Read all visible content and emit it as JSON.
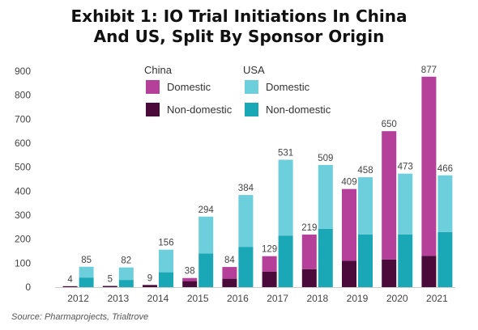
{
  "title_line1": "Exhibit 1: IO Trial Initiations In China",
  "title_line2": "And US, Split By Sponsor Origin",
  "source": "Source: Pharmaprojects, Trialtrove",
  "colors": {
    "china_domestic": "#b5409a",
    "china_non_domestic": "#4a0b3b",
    "usa_domestic": "#6dcfdc",
    "usa_non_domestic": "#1aa8b6"
  },
  "chart_data": {
    "type": "bar",
    "stacked": true,
    "ylim": [
      0,
      900
    ],
    "yticks": [
      0,
      100,
      200,
      300,
      400,
      500,
      600,
      700,
      800,
      900
    ],
    "categories": [
      "2012",
      "2013",
      "2014",
      "2015",
      "2016",
      "2017",
      "2018",
      "2019",
      "2020",
      "2021"
    ],
    "legend": {
      "groups": [
        {
          "name": "China",
          "entries": [
            "Domestic",
            "Non-domestic"
          ]
        },
        {
          "name": "USA",
          "entries": [
            "Domestic",
            "Non-domestic"
          ]
        }
      ]
    },
    "china": {
      "totals": [
        4,
        5,
        9,
        38,
        84,
        129,
        219,
        409,
        650,
        877
      ],
      "non_domestic": [
        4,
        5,
        9,
        25,
        35,
        65,
        75,
        110,
        115,
        130
      ]
    },
    "usa": {
      "totals": [
        85,
        82,
        156,
        294,
        384,
        531,
        509,
        458,
        473,
        466
      ],
      "non_domestic": [
        40,
        30,
        62,
        140,
        168,
        215,
        243,
        220,
        220,
        230
      ]
    }
  }
}
